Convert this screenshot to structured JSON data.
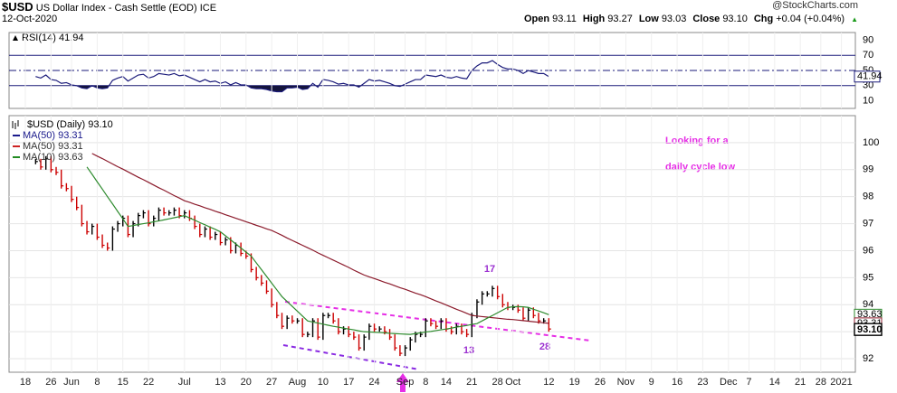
{
  "header": {
    "symbol": "$USD",
    "name": "US Dollar Index - Cash Settle (EOD)",
    "exchange": "ICE",
    "date": "12-Oct-2020",
    "source": "@StockCharts.com",
    "quote": [
      [
        "Open",
        "93.11"
      ],
      [
        "High",
        "93.27"
      ],
      [
        "Low",
        "93.03"
      ],
      [
        "Close",
        "93.10"
      ],
      [
        "Chg",
        "+0.04 (+0.04%)"
      ]
    ]
  },
  "chart_data": [
    {
      "type": "line",
      "title": "RSI(14) 41.94",
      "ylim": [
        0,
        100
      ],
      "yticks": [
        10,
        30,
        50,
        70,
        90
      ],
      "levels": [
        {
          "value": 30,
          "style": "solid"
        },
        {
          "value": 50,
          "style": "dashdot"
        },
        {
          "value": 70,
          "style": "solid"
        }
      ],
      "fill_below": 30,
      "series": [
        {
          "color": "#1a1a7a",
          "values": [
            null,
            null,
            42,
            40,
            44,
            38,
            37,
            33,
            34,
            31,
            30,
            27,
            26,
            30,
            27,
            26,
            27,
            37,
            40,
            42,
            36,
            40,
            44,
            45,
            40,
            42,
            46,
            45,
            44,
            46,
            43,
            44,
            41,
            38,
            35,
            38,
            35,
            36,
            33,
            35,
            31,
            34,
            31,
            31,
            27,
            26,
            26,
            25,
            23,
            22,
            22,
            27,
            27,
            28,
            25,
            26,
            33,
            28,
            38,
            37,
            35,
            32,
            33,
            31,
            31,
            28,
            33,
            38,
            36,
            37,
            35,
            33,
            30,
            29,
            32,
            35,
            38,
            38,
            44,
            43,
            42,
            44,
            41,
            40,
            42,
            40,
            39,
            50,
            56,
            60,
            60,
            63,
            58,
            54,
            52,
            52,
            50,
            46,
            50,
            48,
            46,
            46,
            41.94,
            null,
            null,
            null,
            null,
            null,
            null,
            null,
            null,
            null,
            null,
            null,
            null,
            null,
            null,
            null,
            null,
            null,
            null,
            null,
            null,
            null,
            null,
            null,
            null,
            null,
            null,
            null,
            null,
            null,
            null,
            null,
            null,
            null,
            null,
            null,
            null,
            null,
            null,
            null,
            null,
            null,
            null,
            null,
            null,
            null,
            null,
            null,
            null,
            null,
            null,
            null,
            null,
            null,
            null,
            null,
            null,
            null
          ]
        }
      ]
    },
    {
      "type": "price",
      "title": "$USD (Daily) 93.10",
      "ylim": [
        91.5,
        101
      ],
      "yticks": [
        92,
        93,
        94,
        95,
        96,
        97,
        98,
        99,
        100
      ],
      "grid": true,
      "categories": [
        "18",
        null,
        null,
        null,
        null,
        "26",
        null,
        null,
        null,
        "Jun",
        null,
        null,
        null,
        null,
        "8",
        null,
        null,
        null,
        null,
        "15",
        null,
        null,
        null,
        null,
        "22",
        null,
        null,
        null,
        null,
        null,
        null,
        "Jul",
        null,
        null,
        null,
        null,
        null,
        null,
        "13",
        null,
        null,
        null,
        null,
        "20",
        null,
        null,
        null,
        null,
        "27",
        null,
        null,
        null,
        null,
        "Aug",
        null,
        null,
        null,
        null,
        "10",
        null,
        null,
        null,
        null,
        "17",
        null,
        null,
        null,
        null,
        "24",
        null,
        null,
        null,
        null,
        null,
        "Sep",
        null,
        null,
        null,
        "8",
        null,
        null,
        null,
        "14",
        null,
        null,
        null,
        null,
        "21",
        null,
        null,
        null,
        null,
        "28",
        null,
        null,
        "Oct",
        null,
        null,
        null,
        null,
        null,
        null,
        "12",
        null,
        null,
        null,
        null,
        "19",
        null,
        null,
        null,
        null,
        "26",
        null,
        null,
        null,
        null,
        "Nov",
        null,
        null,
        null,
        null,
        "9",
        null,
        null,
        null,
        null,
        "16",
        null,
        null,
        null,
        null,
        "23",
        null,
        null,
        null,
        null,
        "Dec",
        null,
        null,
        null,
        "7",
        null,
        null,
        null,
        null,
        "14",
        null,
        null,
        null,
        null,
        "21",
        null,
        null,
        null,
        "28",
        null,
        null,
        null,
        "2021"
      ],
      "series": [
        {
          "color": "#000000",
          "down_color": "#cc0000",
          "values": [
            null,
            null,
            99.3,
            99.1,
            99.4,
            99.0,
            98.9,
            98.4,
            98.3,
            97.9,
            97.6,
            97.0,
            96.7,
            96.9,
            96.5,
            96.2,
            96.1,
            96.8,
            97.0,
            97.2,
            96.6,
            97.0,
            97.3,
            97.4,
            97.0,
            97.2,
            97.5,
            97.4,
            97.4,
            97.5,
            97.3,
            97.4,
            97.2,
            96.9,
            96.6,
            96.8,
            96.5,
            96.6,
            96.3,
            96.4,
            96.0,
            96.2,
            95.9,
            95.8,
            95.3,
            95.0,
            94.8,
            94.5,
            94.0,
            93.6,
            93.2,
            93.5,
            93.4,
            93.4,
            92.9,
            92.9,
            93.4,
            92.8,
            93.6,
            93.6,
            93.4,
            93.0,
            93.1,
            92.9,
            92.8,
            92.4,
            92.8,
            93.2,
            93.1,
            93.1,
            93.0,
            92.8,
            92.4,
            92.2,
            92.4,
            92.7,
            92.9,
            92.9,
            93.4,
            93.3,
            93.2,
            93.4,
            93.1,
            93.0,
            93.2,
            93.0,
            92.9,
            93.6,
            94.1,
            94.4,
            94.4,
            94.6,
            94.3,
            94.0,
            93.9,
            93.9,
            93.8,
            93.5,
            93.8,
            93.6,
            93.4,
            93.4,
            93.1,
            null,
            null,
            null,
            null,
            null,
            null,
            null,
            null,
            null,
            null,
            null,
            null,
            null,
            null,
            null,
            null,
            null,
            null,
            null,
            null,
            null,
            null,
            null,
            null,
            null,
            null,
            null,
            null,
            null,
            null,
            null,
            null,
            null,
            null,
            null,
            null,
            null,
            null,
            null,
            null,
            null,
            null,
            null,
            null,
            null,
            null,
            null,
            null,
            null,
            null,
            null,
            null,
            null,
            null,
            null,
            null,
            null
          ]
        },
        {
          "color": "#8b1a2b",
          "values": [
            null,
            null,
            null,
            null,
            null,
            null,
            null,
            null,
            null,
            null,
            null,
            null,
            null,
            99.6,
            99.5,
            99.41,
            99.31,
            99.21,
            99.11,
            99.02,
            98.92,
            98.82,
            98.72,
            98.63,
            98.53,
            98.43,
            98.33,
            98.24,
            98.14,
            98.04,
            97.95,
            97.85,
            97.79,
            97.72,
            97.66,
            97.59,
            97.53,
            97.46,
            97.4,
            97.33,
            97.27,
            97.2,
            97.14,
            97.07,
            97.01,
            96.94,
            96.88,
            96.81,
            96.75,
            96.66,
            96.57,
            96.47,
            96.38,
            96.29,
            96.2,
            96.11,
            96.02,
            95.92,
            95.83,
            95.74,
            95.65,
            95.56,
            95.47,
            95.38,
            95.28,
            95.19,
            95.1,
            95.03,
            94.97,
            94.9,
            94.83,
            94.77,
            94.7,
            94.63,
            94.57,
            94.5,
            94.43,
            94.37,
            94.3,
            94.22,
            94.14,
            94.07,
            93.99,
            93.91,
            93.83,
            93.76,
            93.68,
            93.6,
            93.58,
            93.56,
            93.54,
            93.52,
            93.5,
            93.48,
            93.46,
            93.45,
            93.43,
            93.41,
            93.39,
            93.37,
            93.35,
            93.33,
            93.31,
            null,
            null,
            null,
            null,
            null,
            null,
            null,
            null,
            null,
            null,
            null,
            null,
            null,
            null,
            null,
            null,
            null,
            null,
            null,
            null,
            null,
            null,
            null,
            null,
            null,
            null,
            null,
            null,
            null,
            null,
            null,
            null,
            null,
            null,
            null,
            null,
            null,
            null,
            null,
            null,
            null,
            null,
            null,
            null,
            null,
            null,
            null,
            null,
            null,
            null,
            null,
            null,
            null,
            null,
            null,
            null,
            null
          ]
        },
        {
          "color": "#2e8b2e",
          "values": [
            null,
            null,
            null,
            null,
            null,
            null,
            null,
            null,
            null,
            null,
            null,
            null,
            99.1,
            98.83,
            98.55,
            98.28,
            98.0,
            97.73,
            97.45,
            97.18,
            96.9,
            96.93,
            96.97,
            97.0,
            97.03,
            97.07,
            97.1,
            97.14,
            97.18,
            97.22,
            97.26,
            97.3,
            97.21,
            97.13,
            97.04,
            96.96,
            96.87,
            96.79,
            96.7,
            96.55,
            96.4,
            96.25,
            96.1,
            95.95,
            95.8,
            95.55,
            95.3,
            95.05,
            94.8,
            94.55,
            94.3,
            94.12,
            93.94,
            93.76,
            93.58,
            93.4,
            93.36,
            93.32,
            93.28,
            93.24,
            93.2,
            93.17,
            93.13,
            93.1,
            93.07,
            93.03,
            93.0,
            92.99,
            92.98,
            92.97,
            92.96,
            92.94,
            92.93,
            92.92,
            92.91,
            92.9,
            92.93,
            92.96,
            92.99,
            93.01,
            93.04,
            93.07,
            93.1,
            93.13,
            93.17,
            93.2,
            93.23,
            93.27,
            93.3,
            93.4,
            93.5,
            93.6,
            93.7,
            93.8,
            93.9,
            93.92,
            93.93,
            93.92,
            93.9,
            93.83,
            93.77,
            93.7,
            93.63,
            null,
            null,
            null,
            null,
            null,
            null,
            null,
            null,
            null,
            null,
            null,
            null,
            null,
            null,
            null,
            null,
            null,
            null,
            null,
            null,
            null,
            null,
            null,
            null,
            null,
            null,
            null,
            null,
            null,
            null,
            null,
            null,
            null,
            null,
            null,
            null,
            null,
            null,
            null,
            null,
            null,
            null,
            null,
            null,
            null,
            null,
            null,
            null,
            null,
            null,
            null,
            null,
            null,
            null,
            null,
            null,
            null
          ]
        }
      ],
      "legend": [
        {
          "label": "MA(50) 93.31",
          "color": "#1a1a8c"
        },
        {
          "label": "MA(50) 93.31",
          "color": "#cc2222"
        },
        {
          "label": "MA(10) 93.63",
          "color": "#228b22"
        }
      ],
      "annotations": [
        "Looking for a",
        "daily cycle low",
        "17",
        "13",
        "28"
      ]
    }
  ]
}
